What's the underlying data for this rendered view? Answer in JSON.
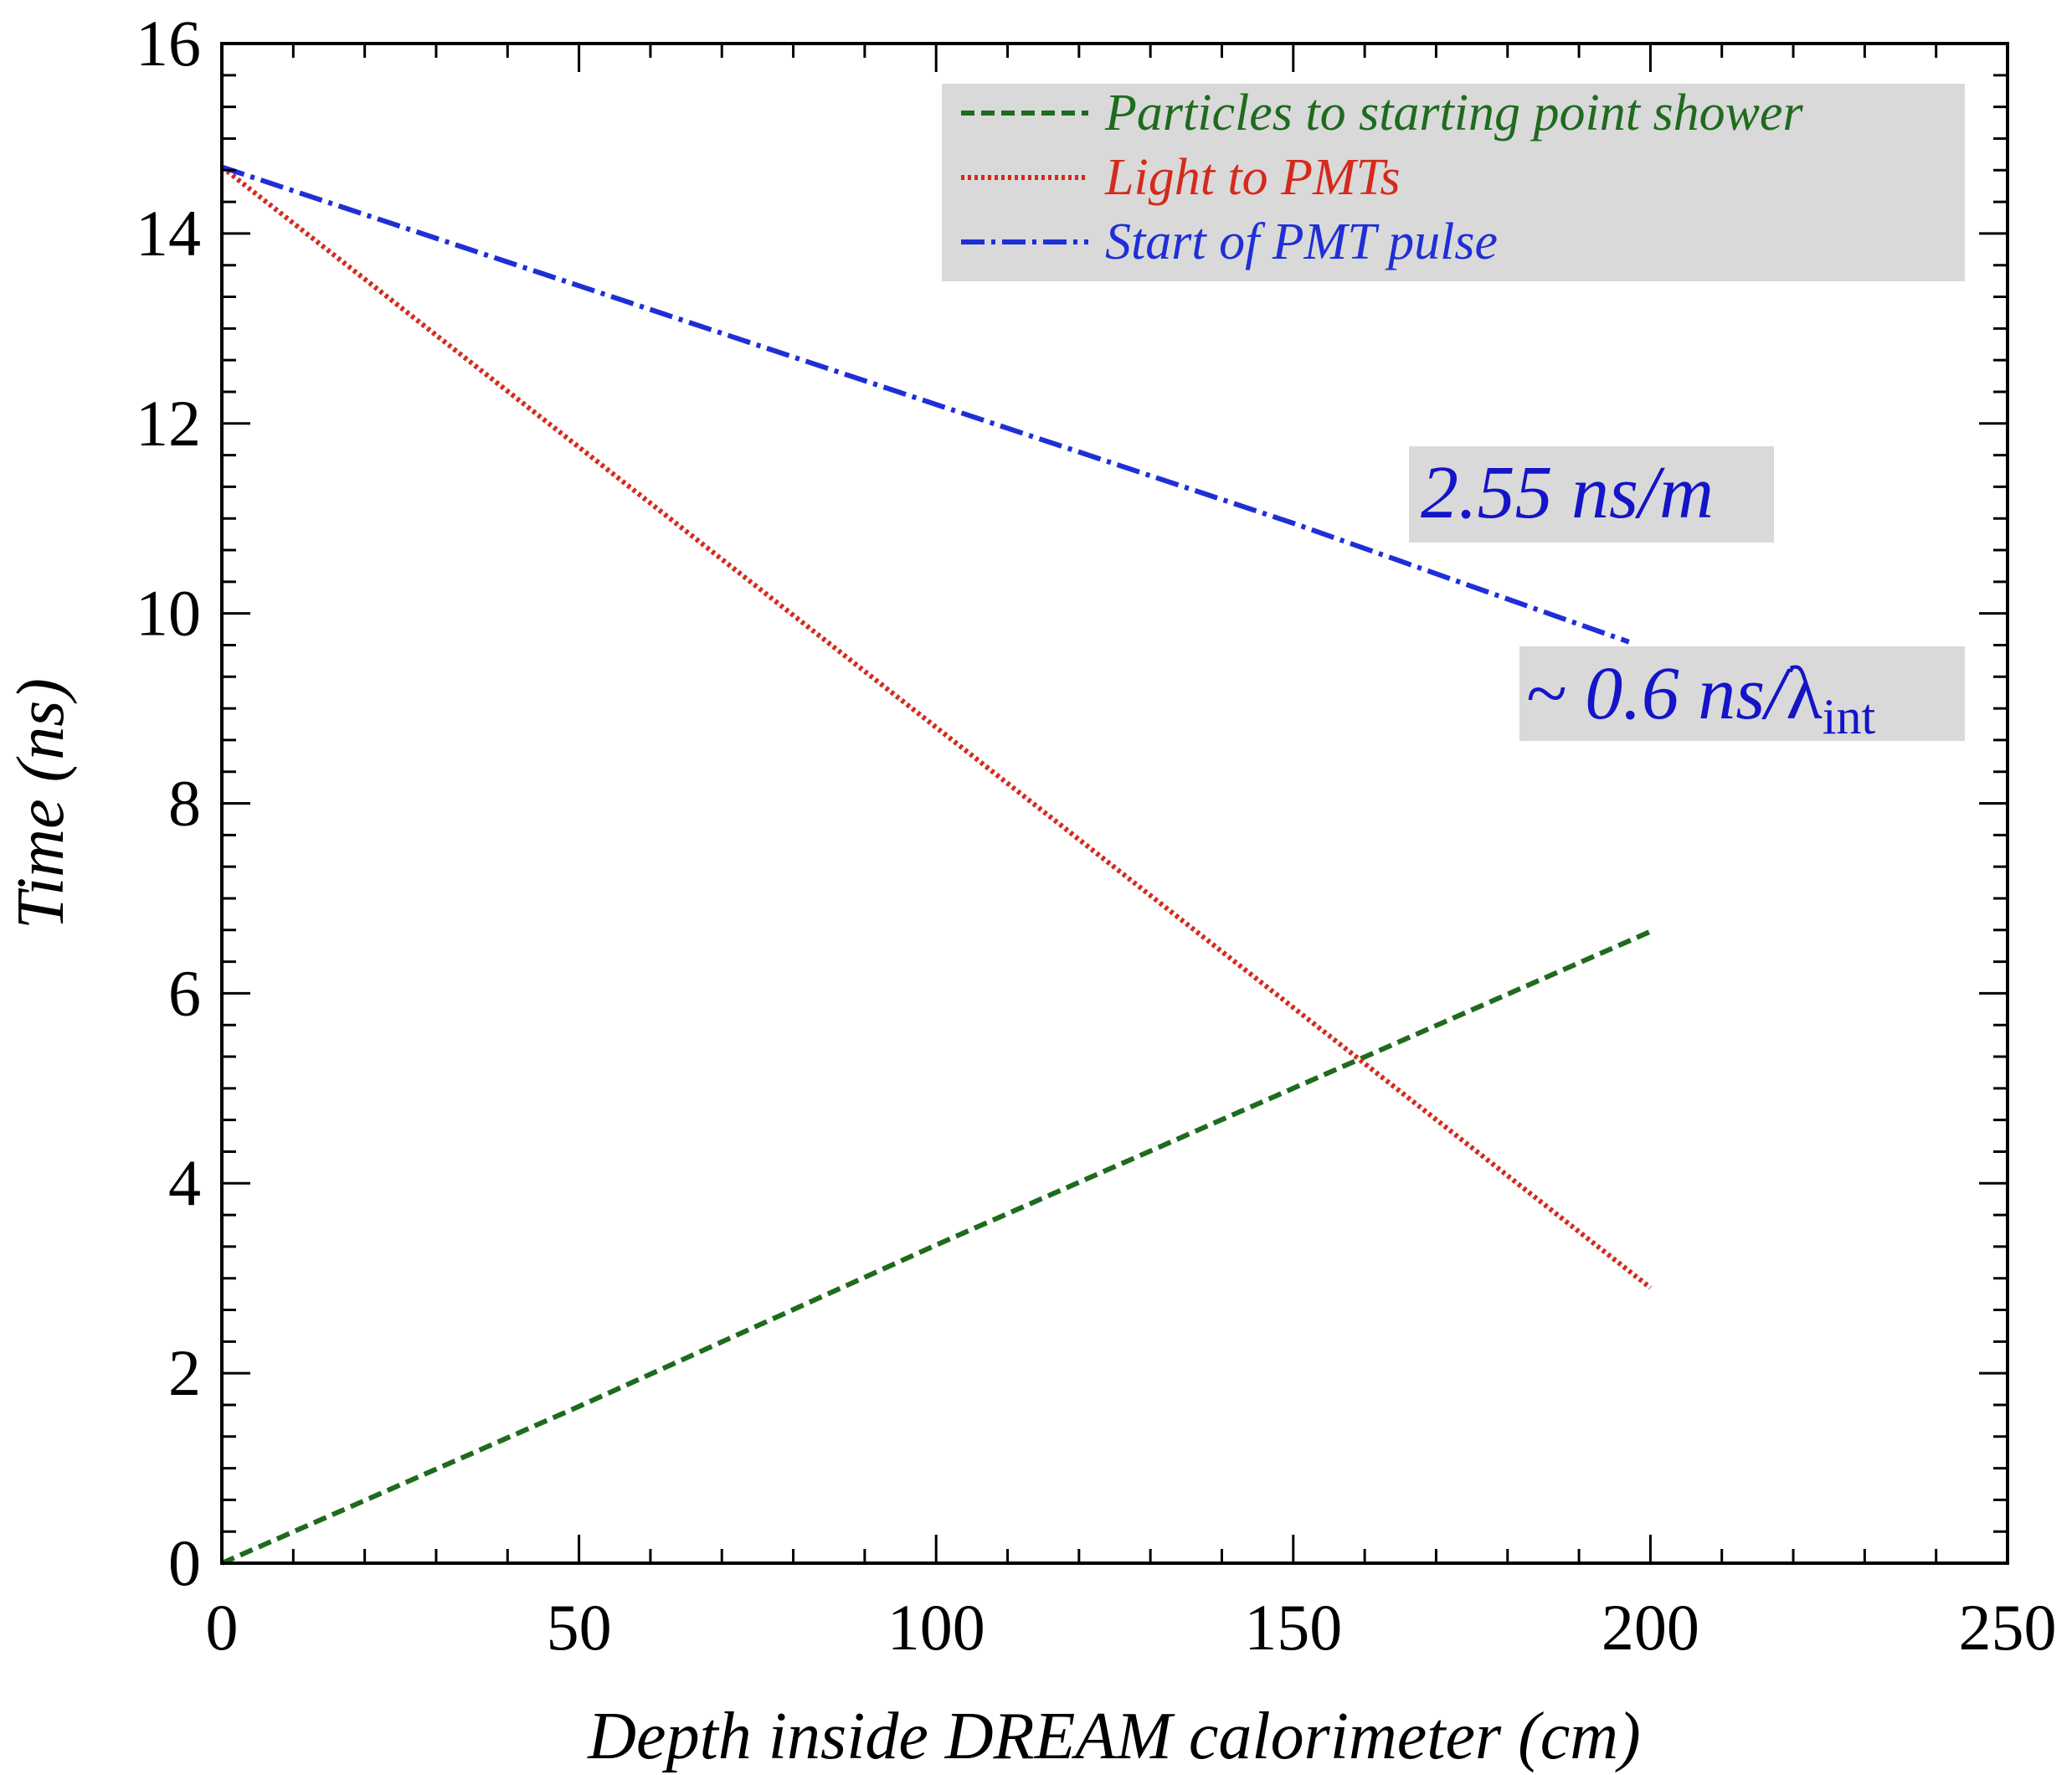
{
  "chart_data": {
    "type": "line",
    "xlabel": "Depth inside DREAM calorimeter (cm)",
    "ylabel": "Time (ns)",
    "xlim": [
      0,
      250
    ],
    "ylim": [
      0,
      16
    ],
    "xticks": [
      0,
      50,
      100,
      150,
      200,
      250
    ],
    "yticks": [
      0,
      2,
      4,
      6,
      8,
      10,
      12,
      14,
      16
    ],
    "grid": false,
    "legend_position": "top-right",
    "series": [
      {
        "name": "Particles to starting point shower",
        "color": "#1e6b1e",
        "style": "dashed",
        "x": [
          0,
          50,
          100,
          150,
          200
        ],
        "y": [
          0.0,
          1.65,
          3.35,
          5.0,
          6.65
        ]
      },
      {
        "name": "Light to PMTs",
        "color": "#d42a1c",
        "style": "dotted",
        "x": [
          0,
          50,
          100,
          150,
          200
        ],
        "y": [
          14.7,
          11.75,
          8.8,
          5.85,
          2.9
        ]
      },
      {
        "name": "Start of PMT pulse",
        "color": "#1f2fd6",
        "style": "dash-dot",
        "x": [
          0,
          50,
          100,
          150,
          197
        ],
        "y": [
          14.7,
          13.45,
          12.2,
          10.95,
          9.7
        ]
      }
    ],
    "annotations": [
      {
        "text": "2.55 ns/m",
        "color": "#1414c8",
        "x": 190,
        "y": 11.3
      },
      {
        "text": "~ 0.6 ns/",
        "greek": "λ",
        "subscript": "int",
        "color": "#1414c8",
        "x": 210,
        "y": 9.0
      }
    ]
  }
}
